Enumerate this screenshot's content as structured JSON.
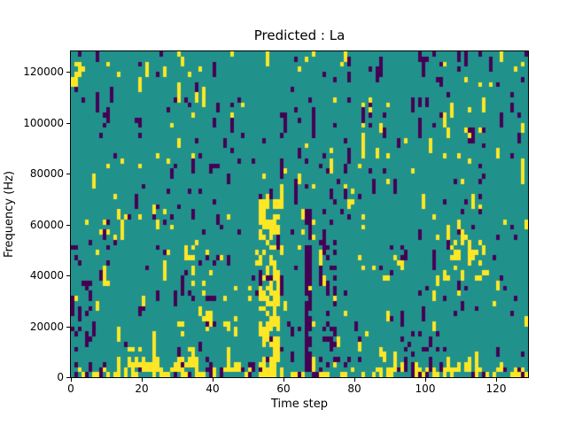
{
  "chart_data": {
    "type": "heatmap",
    "title": "Predicted : La",
    "xlabel": "Time step",
    "ylabel": "Frequency (Hz)",
    "xlim": [
      0,
      129
    ],
    "ylim": [
      0,
      128000
    ],
    "x_ticks": [
      0,
      20,
      40,
      60,
      80,
      100,
      120
    ],
    "y_ticks": [
      0,
      20000,
      40000,
      60000,
      80000,
      100000,
      120000
    ],
    "grid": {
      "cols": 129,
      "rows": 64,
      "hz_per_row": 2000
    },
    "colormap": "viridis",
    "legend": "none",
    "colors": {
      "mid_teal": "#21918c",
      "high_yellow": "#fde725",
      "low_purple": "#440154",
      "axis": "#000000",
      "background": "#ffffff"
    },
    "pattern": {
      "seed": 7,
      "base_purple_density": 0.032,
      "base_yellow_density": 0.022,
      "column_variation": 1.4,
      "vertical_run_probability": 0.32,
      "features": [
        {
          "cols": [
            0,
            128
          ],
          "rows": [
            0,
            1
          ],
          "color": "yellow",
          "density": 0.4
        },
        {
          "cols": [
            0,
            128
          ],
          "rows": [
            0,
            1
          ],
          "color": "purple",
          "density": 0.1
        },
        {
          "cols": [
            53,
            58
          ],
          "rows": [
            0,
            34
          ],
          "color": "yellow",
          "density": 0.45
        },
        {
          "cols": [
            66,
            67
          ],
          "rows": [
            1,
            32
          ],
          "color": "purple",
          "density": 0.65
        },
        {
          "cols": [
            71,
            74
          ],
          "rows": [
            2,
            30
          ],
          "color": "purple",
          "density": 0.25
        },
        {
          "cols": [
            0,
            3
          ],
          "rows": [
            57,
            62
          ],
          "color": "yellow",
          "density": 0.3
        },
        {
          "cols": [
            107,
            117
          ],
          "rows": [
            19,
            27
          ],
          "color": "yellow",
          "density": 0.18
        },
        {
          "cols": [
            93,
            104
          ],
          "rows": [
            1,
            9
          ],
          "color": "purple",
          "density": 0.18
        },
        {
          "cols": [
            13,
            22
          ],
          "rows": [
            0,
            2
          ],
          "color": "yellow",
          "density": 0.55
        },
        {
          "cols": [
            28,
            35
          ],
          "rows": [
            0,
            2
          ],
          "color": "yellow",
          "density": 0.5
        },
        {
          "cols": [
            85,
            91
          ],
          "rows": [
            0,
            1
          ],
          "color": "yellow",
          "density": 0.55
        },
        {
          "cols": [
            99,
            106
          ],
          "rows": [
            0,
            1
          ],
          "color": "yellow",
          "density": 0.5
        },
        {
          "cols": [
            117,
            126
          ],
          "rows": [
            0,
            1
          ],
          "color": "yellow",
          "density": 0.5
        },
        {
          "cols": [
            0,
            6
          ],
          "rows": [
            3,
            20
          ],
          "color": "purple",
          "density": 0.12
        },
        {
          "cols": [
            30,
            46
          ],
          "rows": [
            8,
            24
          ],
          "color": "yellow",
          "density": 0.08
        }
      ]
    }
  }
}
